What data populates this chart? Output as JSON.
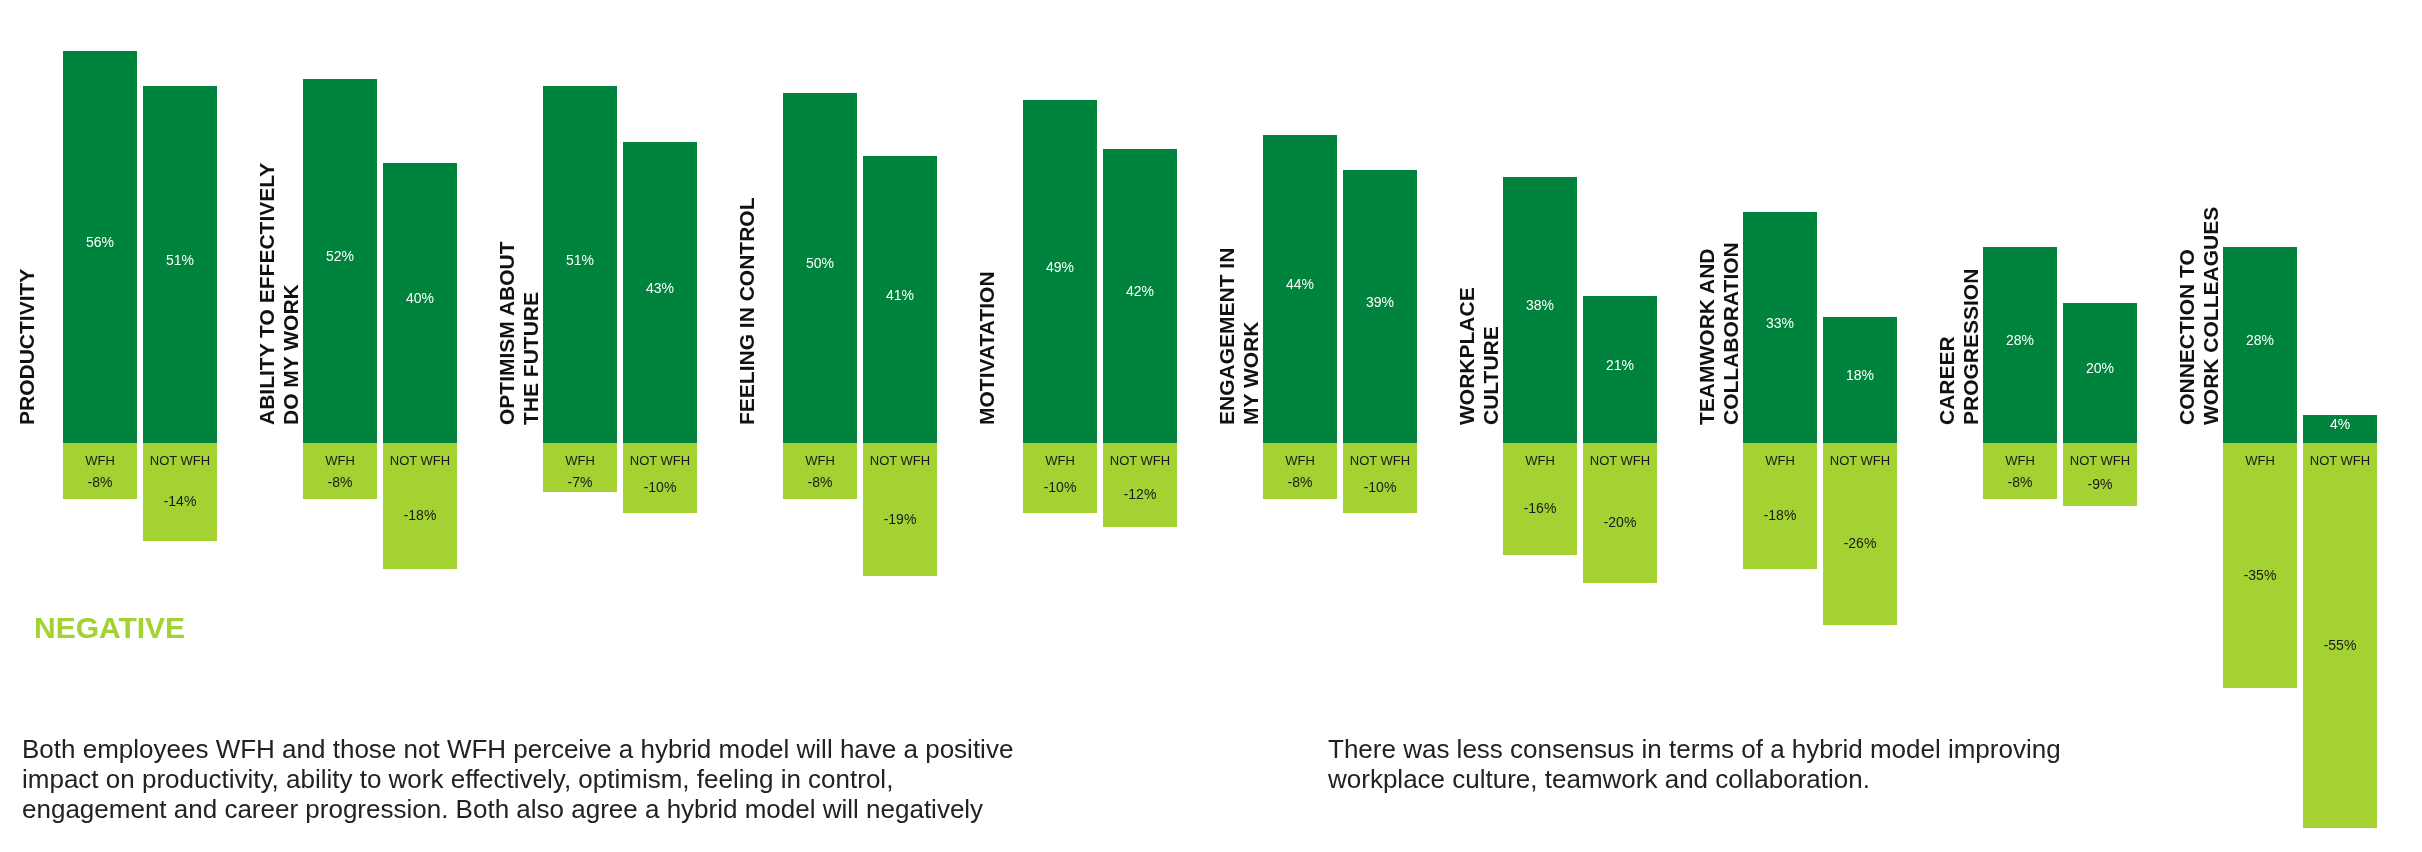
{
  "chart_data": {
    "type": "bar",
    "stacked": true,
    "categories": [
      "WFH",
      "NOT WFH",
      "WFH",
      "NOT WFH",
      "WFH",
      "NOT WFH",
      "WFH",
      "NOT WFH",
      "WFH",
      "NOT WFH",
      "WFH",
      "NOT WFH",
      "WFH",
      "NOT WFH",
      "WFH",
      "NOT WFH",
      "WFH",
      "NOT WFH",
      "WFH",
      "NOT WFH"
    ],
    "series": [
      {
        "color": "#00843d",
        "values": [
          56,
          51,
          52,
          40,
          51,
          43,
          50,
          41,
          49,
          42,
          44,
          39,
          38,
          21,
          33,
          18,
          28,
          20,
          28,
          4
        ],
        "value_labels": [
          "56%",
          "51%",
          "52%",
          "40%",
          "51%",
          "43%",
          "50%",
          "41%",
          "49%",
          "42%",
          "44%",
          "39%",
          "38%",
          "21%",
          "33%",
          "18%",
          "28%",
          "20%",
          "28%",
          "4%"
        ]
      },
      {
        "color": "#a4d233",
        "values": [
          -8,
          -14,
          -8,
          -18,
          -7,
          -10,
          -8,
          -19,
          -10,
          -12,
          -8,
          -10,
          -16,
          -20,
          -18,
          -26,
          -8,
          -9,
          -35,
          -55
        ],
        "value_labels": [
          "-8%",
          "-14%",
          "-8%",
          "-18%",
          "-7%",
          "-10%",
          "-8%",
          "-19%",
          "-10%",
          "-12%",
          "-8%",
          "-10%",
          "-16%",
          "-20%",
          "-18%",
          "-26%",
          "-8%",
          "-9%",
          "-35%",
          "-55%"
        ]
      }
    ],
    "annotations": [
      "PRODUCTIVITY",
      "ABILITY TO EFFECTIVELY\nDO MY WORK",
      "OPTIMISM ABOUT\nTHE FUTURE",
      "FEELING IN CONTROL",
      "MOTIVATATION",
      "ENGAGEMENT IN\nMY WORK",
      "WORKPLACE\nCULTURE",
      "TEAMWORK AND\nCOLLABORATION",
      "CAREER\nPROGRESSION",
      "CONNECTION TO\nWORK COLLEAGUES",
      "NEGATIVE",
      "Both employees WFH and those not WFH perceive a hybrid model will have a positive\nimpact on  productivity, ability to work effectively, optimism, feeling in control,\nengagement and career progression. Both also agree a hybrid model will negatively",
      "There was less consensus in terms of a hybrid model improving\nworkplace culture, teamwork and collaboration."
    ]
  }
}
